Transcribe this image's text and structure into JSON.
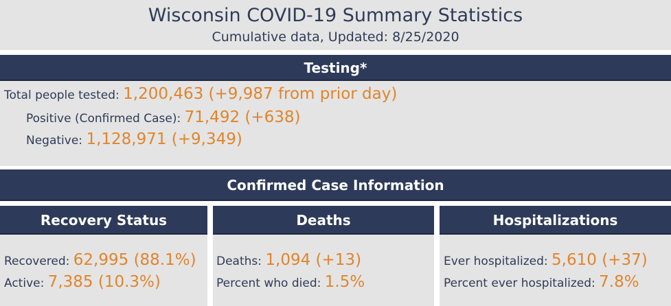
{
  "header": {
    "title": "Wisconsin COVID-19 Summary Statistics",
    "subtitle": "Cumulative data, Updated: 8/25/2020"
  },
  "testing": {
    "heading": "Testing*",
    "total_label": "Total people tested: ",
    "total_value": "1,200,463 (+9,987 from prior day)",
    "positive_label": "Positive (Confirmed Case): ",
    "positive_value": "71,492 (+638)",
    "negative_label": "Negative: ",
    "negative_value": "1,128,971 (+9,349)"
  },
  "cases": {
    "heading": "Confirmed Case Information",
    "recovery": {
      "heading": "Recovery Status",
      "recovered_label": "Recovered: ",
      "recovered_value": "62,995 (88.1%)",
      "active_label": "Active: ",
      "active_value": "7,385 (10.3%)"
    },
    "deaths": {
      "heading": "Deaths",
      "deaths_label": "Deaths: ",
      "deaths_value": "1,094 (+13)",
      "percent_label": "Percent who died: ",
      "percent_value": "1.5%"
    },
    "hospitalizations": {
      "heading": "Hospitalizations",
      "ever_label": "Ever hospitalized: ",
      "ever_value": "5,610 (+37)",
      "percent_label": "Percent ever hospitalized: ",
      "percent_value": "7.8%"
    }
  },
  "colors": {
    "header_bar": "#2e3a59",
    "panel_bg": "#e4e4e4",
    "value_accent": "#e0852c",
    "label_text": "#2f3b57"
  }
}
